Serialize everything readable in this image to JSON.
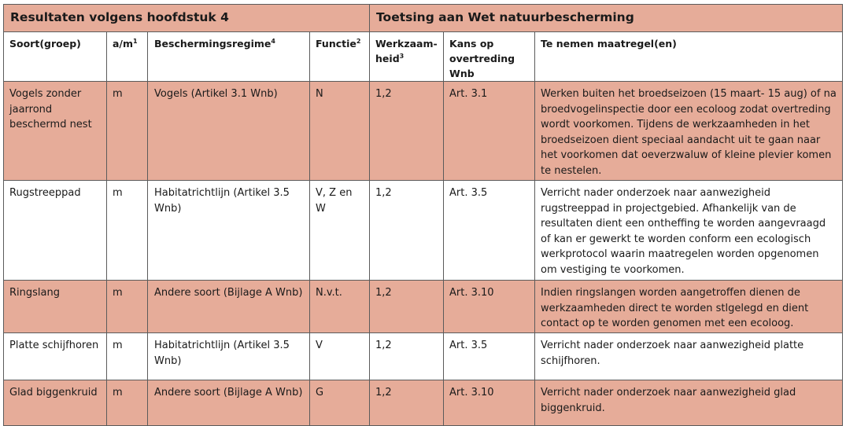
{
  "band": {
    "left": "Resultaten volgens hoofdstuk 4",
    "right": "Toetsing aan Wet natuurbescherming"
  },
  "headers": [
    {
      "label": "Soort(groep)",
      "sup": ""
    },
    {
      "label": "a/m",
      "sup": "1"
    },
    {
      "label": "Beschermingsregime",
      "sup": "4"
    },
    {
      "label": "Functie",
      "sup": "2"
    },
    {
      "label": "Werkzaam-heid",
      "sup": "3"
    },
    {
      "label": "Kans op overtreding Wnb",
      "sup": ""
    },
    {
      "label": "Te nemen maatregel(en)",
      "sup": ""
    }
  ],
  "rows": [
    {
      "soort": "Vogels zonder jaarrond beschermd nest",
      "am": "m",
      "regime": "Vogels (Artikel 3.1 Wnb)",
      "functie": "N",
      "werkzaamheid": "1,2",
      "kans": "Art. 3.1",
      "maatregel": "Werken buiten het broedseizoen (15 maart-  15 aug) of na broedvogelinspectie door een ecoloog zodat overtreding wordt voorkomen. Tijdens de werkzaamheden in het broedseizoen dient speciaal aandacht uit te gaan naar het voorkomen dat oeverzwaluw of kleine plevier komen te nestelen."
    },
    {
      "soort": "Rugstreeppad",
      "am": "m",
      "regime": "Habitatrichtlijn (Artikel 3.5 Wnb)",
      "functie": "V, Z en W",
      "werkzaamheid": "1,2",
      "kans": "Art. 3.5",
      "maatregel": "Verricht nader onderzoek naar aanwezigheid rugstreeppad in projectgebied. Afhankelijk van de resultaten dient een ontheffing te worden aangevraagd of kan er gewerkt te worden conform een ecologisch werkprotocol waarin maatregelen worden opgenomen om vestiging te voorkomen."
    },
    {
      "soort": "Ringslang",
      "am": "m",
      "regime": "Andere soort (Bijlage A Wnb)",
      "functie": "N.v.t.",
      "werkzaamheid": "1,2",
      "kans": "Art. 3.10",
      "maatregel": "Indien ringslangen worden aangetroffen dienen de werkzaamheden direct te worden stlgelegd en dient contact op te worden genomen met een ecoloog."
    },
    {
      "soort": "Platte schijfhoren",
      "am": "m",
      "regime": "Habitatrichtlijn (Artikel 3.5 Wnb)",
      "functie": "V",
      "werkzaamheid": "1,2",
      "kans": "Art. 3.5",
      "maatregel": "Verricht nader onderzoek naar aanwezigheid platte schijfhoren."
    },
    {
      "soort": "Glad biggenkruid",
      "am": "m",
      "regime": "Andere soort (Bijlage A Wnb)",
      "functie": "G",
      "werkzaamheid": "1,2",
      "kans": "Art. 3.10",
      "maatregel": "Verricht nader onderzoek naar aanwezigheid glad biggenkruid."
    }
  ]
}
